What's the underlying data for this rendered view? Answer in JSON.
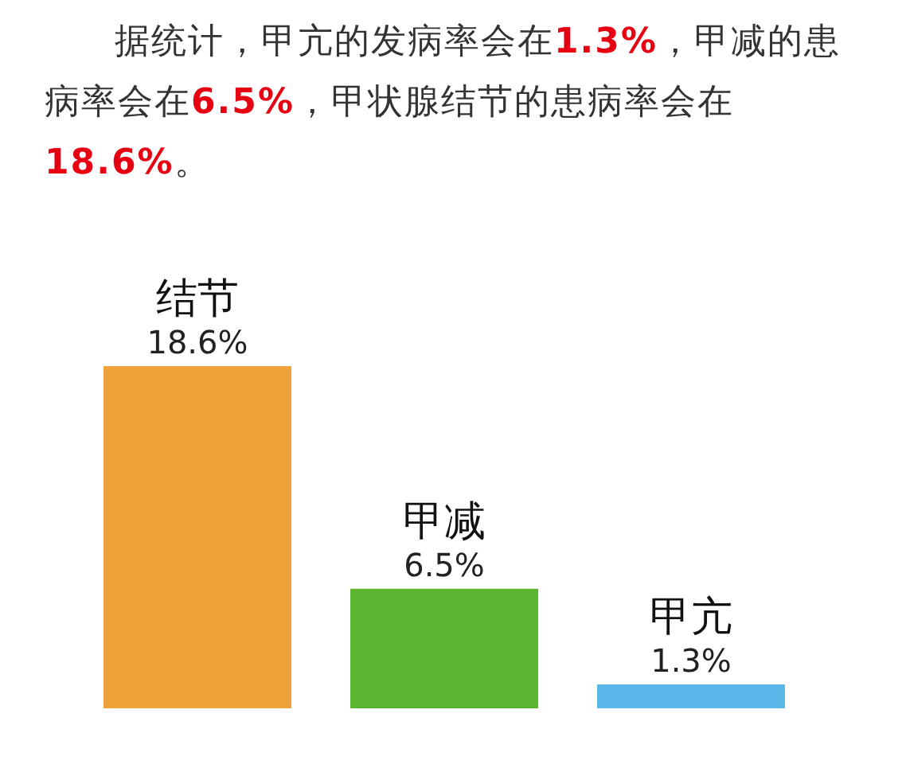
{
  "chart_data": {
    "type": "bar",
    "title": "据统计，甲亢的发病率会在1.3%，甲减的患病率会在6.5%，甲状腺结节的患病率会在18.6%。",
    "categories": [
      "结节",
      "甲减",
      "甲亢"
    ],
    "values": [
      18.6,
      6.5,
      1.3
    ],
    "value_labels": [
      "18.6%",
      "6.5%",
      "1.3%"
    ],
    "colors": [
      "#f0a33a",
      "#5cb531",
      "#5ab8e8"
    ]
  }
}
